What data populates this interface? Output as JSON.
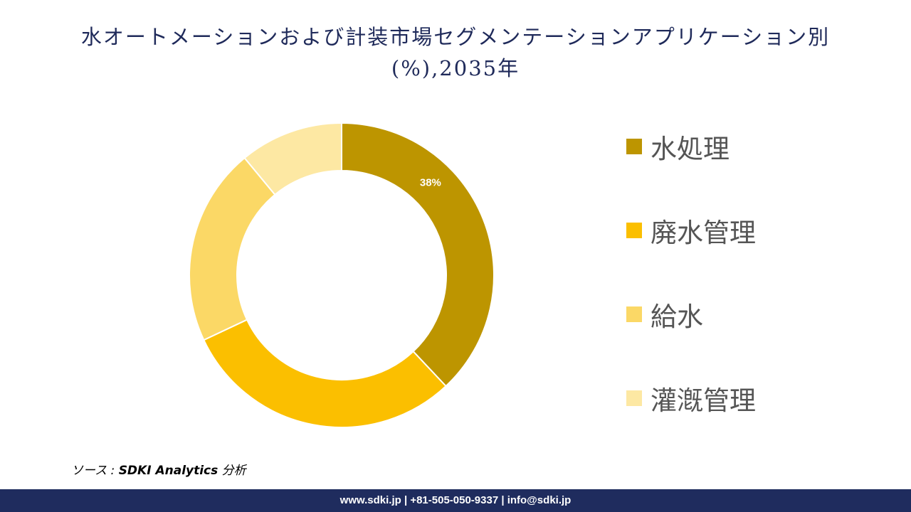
{
  "title": "水オートメーションおよび計装市場セグメンテーションアプリケーション別(%),2035年",
  "chart_data": {
    "type": "pie",
    "donut": true,
    "title": "水オートメーションおよび計装市場セグメンテーションアプリケーション別(%),2035年",
    "categories": [
      "水処理",
      "廃水管理",
      "給水",
      "灌漑管理"
    ],
    "values": [
      38,
      30,
      21,
      11
    ],
    "data_labels": [
      "38%",
      "",
      "",
      ""
    ],
    "colors": [
      "#bd9500",
      "#fbbf00",
      "#fbd866",
      "#fde8a3"
    ],
    "legend_position": "right"
  },
  "source": {
    "prefix": "ソース : ",
    "name": "SDKI Analytics",
    "suffix": " 分析"
  },
  "footer": {
    "text": "www.sdki.jp | +81-505-050-9337 | info@sdki.jp"
  }
}
